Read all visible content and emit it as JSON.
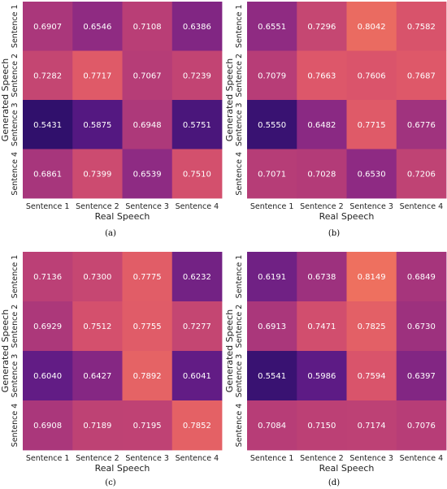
{
  "chart_data": [
    {
      "panel": "(a)",
      "type": "heatmap",
      "xlabel": "Real Speech",
      "ylabel": "Generated Speech",
      "x_categories": [
        "Sentence 1",
        "Sentence 2",
        "Sentence 3",
        "Sentence 4"
      ],
      "y_categories": [
        "Sentence 1",
        "Sentence 2",
        "Sentence 3",
        "Sentence 4"
      ],
      "values": [
        [
          "0.6907",
          "0.6546",
          "0.7108",
          "0.6386"
        ],
        [
          "0.7282",
          "0.7717",
          "0.7067",
          "0.7239"
        ],
        [
          "0.5431",
          "0.5875",
          "0.6948",
          "0.5751"
        ],
        [
          "0.6861",
          "0.7399",
          "0.6539",
          "0.7510"
        ]
      ]
    },
    {
      "panel": "(b)",
      "type": "heatmap",
      "xlabel": "Real Speech",
      "ylabel": "Generated Speech",
      "x_categories": [
        "Sentence 1",
        "Sentence 2",
        "Sentence 3",
        "Sentence 4"
      ],
      "y_categories": [
        "Sentence 1",
        "Sentence 2",
        "Sentence 3",
        "Sentence 4"
      ],
      "values": [
        [
          "0.6551",
          "0.7296",
          "0.8042",
          "0.7582"
        ],
        [
          "0.7079",
          "0.7663",
          "0.7606",
          "0.7687"
        ],
        [
          "0.5550",
          "0.6482",
          "0.7715",
          "0.6776"
        ],
        [
          "0.7071",
          "0.7028",
          "0.6530",
          "0.7206"
        ]
      ]
    },
    {
      "panel": "(c)",
      "type": "heatmap",
      "xlabel": "Real Speech",
      "ylabel": "Generated Speech",
      "x_categories": [
        "Sentence 1",
        "Sentence 2",
        "Sentence 3",
        "Sentence 4"
      ],
      "y_categories": [
        "Sentence 1",
        "Sentence 2",
        "Sentence 3",
        "Sentence 4"
      ],
      "values": [
        [
          "0.7136",
          "0.7300",
          "0.7775",
          "0.6232"
        ],
        [
          "0.6929",
          "0.7512",
          "0.7755",
          "0.7277"
        ],
        [
          "0.6040",
          "0.6427",
          "0.7892",
          "0.6041"
        ],
        [
          "0.6908",
          "0.7189",
          "0.7195",
          "0.7852"
        ]
      ]
    },
    {
      "panel": "(d)",
      "type": "heatmap",
      "xlabel": "Real Speech",
      "ylabel": "Generated Speech",
      "x_categories": [
        "Sentence 1",
        "Sentence 2",
        "Sentence 3",
        "Sentence 4"
      ],
      "y_categories": [
        "Sentence 1",
        "Sentence 2",
        "Sentence 3",
        "Sentence 4"
      ],
      "values": [
        [
          "0.6191",
          "0.6738",
          "0.8149",
          "0.6849"
        ],
        [
          "0.6913",
          "0.7471",
          "0.7825",
          "0.6730"
        ],
        [
          "0.5541",
          "0.5986",
          "0.7594",
          "0.6397"
        ],
        [
          "0.7084",
          "0.7150",
          "0.7174",
          "0.7076"
        ]
      ]
    }
  ],
  "colormap": {
    "min_value": 0.54,
    "max_value": 0.82,
    "stops": [
      "#2d0f6b",
      "#5b1a85",
      "#8d2a83",
      "#b73d77",
      "#dc566a",
      "#f0735e"
    ]
  }
}
